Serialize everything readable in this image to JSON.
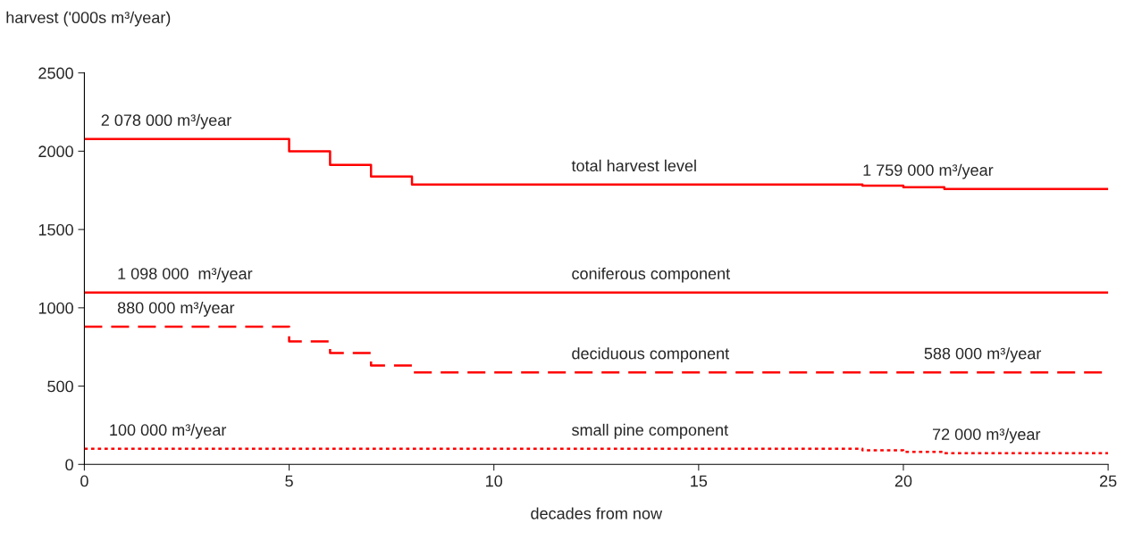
{
  "chart_data": {
    "type": "step",
    "xlabel": "decades from now",
    "ylabel": "harvest ('000s m³/year)",
    "xlim": [
      0,
      25
    ],
    "xticks": [
      0,
      5,
      10,
      15,
      20,
      25
    ],
    "ylim": [
      0,
      2500
    ],
    "yticks": [
      0,
      500,
      1000,
      1500,
      2000,
      2500
    ],
    "grid": false,
    "legend": false,
    "marker": "none",
    "series": [
      {
        "name": "total harvest level",
        "color": "#ff0000",
        "line_style": "solid",
        "x": [
          0,
          5,
          6,
          7,
          8,
          19,
          20,
          21,
          25
        ],
        "values": [
          2078,
          2000,
          1912,
          1838,
          1787,
          1780,
          1770,
          1759,
          1759
        ]
      },
      {
        "name": "coniferous component",
        "color": "#ff0000",
        "line_style": "solid",
        "x": [
          0,
          25
        ],
        "values": [
          1098,
          1098
        ]
      },
      {
        "name": "deciduous component",
        "color": "#ff0000",
        "line_style": "dashed",
        "x": [
          0,
          5,
          6,
          7,
          8,
          25
        ],
        "values": [
          880,
          785,
          711,
          632,
          588,
          588
        ]
      },
      {
        "name": "small pine component",
        "color": "#ff0000",
        "line_style": "dotted",
        "x": [
          0,
          19,
          20,
          21,
          25
        ],
        "values": [
          100,
          90,
          80,
          72,
          72
        ]
      }
    ],
    "annotations": [
      {
        "text": "2 078 000 m³/year",
        "x": 0.4,
        "y": 2078
      },
      {
        "text": "1 759 000 m³/year",
        "x": 19.0,
        "y": 1759
      },
      {
        "text": "1 098 000  m³/year",
        "x": 0.8,
        "y": 1098
      },
      {
        "text": "880 000 m³/year",
        "x": 0.8,
        "y": 880
      },
      {
        "text": "588 000 m³/year",
        "x": 20.5,
        "y": 588
      },
      {
        "text": "100 000 m³/year",
        "x": 0.6,
        "y": 100
      },
      {
        "text": "72 000 m³/year",
        "x": 20.7,
        "y": 72
      }
    ]
  }
}
